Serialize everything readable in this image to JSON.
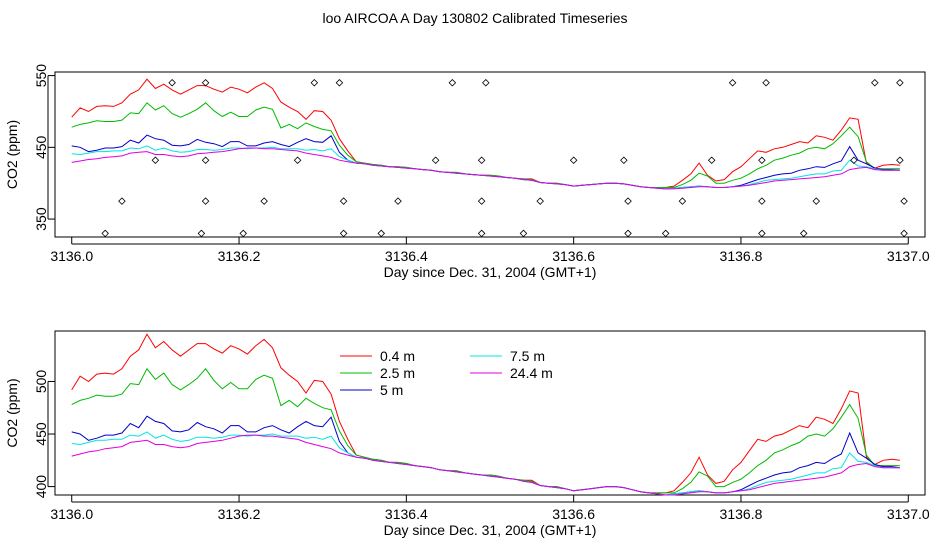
{
  "title": "loo AIRCOA A  Day 130802  Calibrated Timeseries",
  "chart_data": [
    {
      "type": "scatter+line",
      "xlabel": "Day since Dec. 31, 2004 (GMT+1)",
      "ylabel": "CO2 (ppm)",
      "xlim": [
        3135.98,
        3137.02
      ],
      "ylim": [
        325,
        555
      ],
      "xticks": [
        "3136.0",
        "3136.2",
        "3136.4",
        "3136.6",
        "3136.8",
        "3137.0"
      ],
      "yticks": [
        "350",
        "450",
        "550"
      ],
      "point_series": {
        "name": "",
        "marker": "open-diamond",
        "x": [
          3136.04,
          3136.06,
          3136.1,
          3136.12,
          3136.155,
          3136.16,
          3136.16,
          3136.16,
          3136.205,
          3136.23,
          3136.27,
          3136.29,
          3136.32,
          3136.325,
          3136.325,
          3136.37,
          3136.39,
          3136.435,
          3136.455,
          3136.49,
          3136.49,
          3136.49,
          3136.495,
          3136.54,
          3136.56,
          3136.6,
          3136.66,
          3136.665,
          3136.665,
          3136.71,
          3136.73,
          3136.765,
          3136.79,
          3136.825,
          3136.825,
          3136.825,
          3136.83,
          3136.875,
          3136.89,
          3136.935,
          3136.96,
          3136.99,
          3136.99,
          3136.995,
          3136.995
        ],
        "y": [
          330,
          375,
          432,
          540,
          330,
          375,
          432,
          540,
          330,
          375,
          432,
          540,
          540,
          375,
          330,
          330,
          375,
          432,
          540,
          330,
          375,
          432,
          540,
          330,
          375,
          432,
          432,
          375,
          330,
          330,
          375,
          432,
          540,
          330,
          375,
          432,
          540,
          330,
          375,
          432,
          540,
          540,
          432,
          375,
          330
        ]
      },
      "series": [
        {
          "name": "0.4 m",
          "color": "#ff0000"
        },
        {
          "name": "2.5 m",
          "color": "#00bb00"
        },
        {
          "name": "5 m",
          "color": "#0000cc"
        },
        {
          "name": "7.5 m",
          "color": "#00e5e5"
        },
        {
          "name": "24.4 m",
          "color": "#e000e0"
        }
      ]
    },
    {
      "type": "line",
      "xlabel": "Day since Dec. 31, 2004 (GMT+1)",
      "ylabel": "CO2 (ppm)",
      "xlim": [
        3135.98,
        3137.02
      ],
      "ylim": [
        392,
        548
      ],
      "xticks": [
        "3136.0",
        "3136.2",
        "3136.4",
        "3136.6",
        "3136.8",
        "3137.0"
      ],
      "yticks": [
        "400",
        "450",
        "500"
      ],
      "legend": {
        "placement": "top-center",
        "columns": 2
      },
      "x": [
        3136.0,
        3136.01,
        3136.02,
        3136.03,
        3136.04,
        3136.05,
        3136.06,
        3136.07,
        3136.08,
        3136.09,
        3136.1,
        3136.11,
        3136.12,
        3136.13,
        3136.14,
        3136.15,
        3136.16,
        3136.17,
        3136.18,
        3136.19,
        3136.2,
        3136.21,
        3136.22,
        3136.23,
        3136.24,
        3136.25,
        3136.26,
        3136.27,
        3136.28,
        3136.29,
        3136.3,
        3136.31,
        3136.32,
        3136.33,
        3136.34,
        3136.35,
        3136.36,
        3136.37,
        3136.38,
        3136.39,
        3136.4,
        3136.41,
        3136.42,
        3136.43,
        3136.44,
        3136.45,
        3136.46,
        3136.47,
        3136.48,
        3136.49,
        3136.5,
        3136.51,
        3136.52,
        3136.53,
        3136.54,
        3136.55,
        3136.56,
        3136.57,
        3136.58,
        3136.59,
        3136.6,
        3136.61,
        3136.62,
        3136.63,
        3136.64,
        3136.65,
        3136.66,
        3136.67,
        3136.68,
        3136.69,
        3136.7,
        3136.71,
        3136.72,
        3136.73,
        3136.74,
        3136.75,
        3136.76,
        3136.77,
        3136.78,
        3136.79,
        3136.8,
        3136.81,
        3136.82,
        3136.83,
        3136.84,
        3136.85,
        3136.86,
        3136.87,
        3136.88,
        3136.89,
        3136.9,
        3136.91,
        3136.92,
        3136.93,
        3136.94,
        3136.95,
        3136.96,
        3136.97,
        3136.98,
        3136.99
      ],
      "series": [
        {
          "name": "0.4 m",
          "color": "#ff0000",
          "values": [
            492,
            505,
            500,
            507,
            508,
            507,
            512,
            524,
            530,
            545,
            532,
            538,
            530,
            524,
            530,
            536,
            536,
            531,
            527,
            534,
            531,
            526,
            534,
            540,
            532,
            513,
            506,
            500,
            489,
            501,
            500,
            488,
            462,
            445,
            430,
            428,
            426,
            425,
            423,
            423,
            422,
            420,
            419,
            418,
            416,
            415,
            415,
            413,
            412,
            411,
            411,
            410,
            408,
            407,
            406,
            406,
            401,
            400,
            400,
            398,
            396,
            397,
            398,
            399,
            400,
            400,
            399,
            397,
            395,
            394,
            394,
            394,
            396,
            404,
            413,
            428,
            411,
            403,
            405,
            416,
            423,
            434,
            445,
            443,
            448,
            450,
            454,
            458,
            456,
            466,
            464,
            460,
            474,
            491,
            489,
            428,
            421,
            425,
            426,
            425
          ]
        },
        {
          "name": "2.5 m",
          "color": "#00bb00",
          "values": [
            478,
            482,
            484,
            487,
            486,
            486,
            488,
            498,
            497,
            512,
            502,
            508,
            497,
            492,
            497,
            503,
            512,
            501,
            493,
            499,
            493,
            493,
            502,
            506,
            503,
            477,
            482,
            476,
            484,
            479,
            475,
            473,
            453,
            439,
            430,
            428,
            426,
            425,
            423,
            423,
            422,
            420,
            419,
            418,
            416,
            415,
            415,
            413,
            412,
            411,
            411,
            410,
            408,
            407,
            406,
            405,
            401,
            400,
            400,
            398,
            396,
            397,
            398,
            399,
            400,
            400,
            399,
            397,
            395,
            394,
            394,
            394,
            394,
            398,
            404,
            414,
            410,
            400,
            400,
            404,
            407,
            413,
            420,
            425,
            432,
            435,
            439,
            442,
            448,
            450,
            448,
            455,
            466,
            478,
            465,
            430,
            420,
            420,
            420,
            420
          ]
        },
        {
          "name": "5 m",
          "color": "#0000cc",
          "values": [
            452,
            450,
            444,
            446,
            449,
            449,
            451,
            460,
            456,
            467,
            462,
            460,
            453,
            452,
            454,
            461,
            457,
            455,
            451,
            458,
            458,
            452,
            452,
            456,
            458,
            454,
            451,
            457,
            462,
            458,
            457,
            466,
            443,
            432,
            428,
            427,
            425,
            424,
            423,
            422,
            421,
            420,
            419,
            418,
            416,
            415,
            414,
            413,
            412,
            411,
            410,
            409,
            408,
            407,
            405,
            404,
            401,
            400,
            399,
            398,
            396,
            397,
            398,
            399,
            400,
            400,
            399,
            397,
            395,
            394,
            393,
            392,
            393,
            394,
            395,
            396,
            395,
            394,
            394,
            395,
            397,
            401,
            405,
            408,
            411,
            413,
            414,
            418,
            420,
            423,
            422,
            427,
            431,
            451,
            432,
            427,
            421,
            419,
            419,
            418
          ]
        },
        {
          "name": "7.5 m",
          "color": "#00e5e5",
          "values": [
            441,
            440,
            442,
            444,
            444,
            445,
            445,
            449,
            448,
            452,
            446,
            449,
            445,
            443,
            444,
            447,
            447,
            446,
            447,
            449,
            449,
            448,
            449,
            449,
            450,
            448,
            448,
            448,
            446,
            447,
            445,
            448,
            437,
            432,
            428,
            427,
            425,
            424,
            423,
            422,
            421,
            420,
            419,
            418,
            416,
            415,
            414,
            413,
            412,
            411,
            410,
            409,
            408,
            407,
            405,
            404,
            401,
            400,
            399,
            398,
            396,
            397,
            398,
            399,
            400,
            400,
            399,
            397,
            395,
            394,
            393,
            392,
            393,
            394,
            395,
            396,
            395,
            394,
            394,
            395,
            396,
            398,
            401,
            404,
            405,
            406,
            407,
            409,
            411,
            413,
            413,
            417,
            418,
            432,
            424,
            423,
            420,
            418,
            418,
            418
          ]
        },
        {
          "name": "24.4 m",
          "color": "#e000e0",
          "values": [
            429,
            431,
            433,
            434,
            436,
            437,
            438,
            442,
            443,
            444,
            440,
            440,
            438,
            437,
            438,
            441,
            442,
            443,
            444,
            446,
            448,
            449,
            449,
            448,
            448,
            447,
            446,
            445,
            442,
            440,
            438,
            436,
            432,
            430,
            428,
            427,
            425,
            424,
            423,
            422,
            421,
            420,
            419,
            418,
            416,
            415,
            414,
            413,
            412,
            411,
            410,
            409,
            408,
            407,
            405,
            404,
            401,
            400,
            399,
            398,
            396,
            397,
            398,
            399,
            400,
            400,
            399,
            397,
            395,
            394,
            393,
            392,
            392,
            393,
            394,
            395,
            395,
            394,
            394,
            395,
            396,
            397,
            399,
            401,
            403,
            404,
            405,
            406,
            407,
            408,
            409,
            411,
            413,
            419,
            421,
            422,
            419,
            418,
            418,
            418
          ]
        }
      ]
    }
  ]
}
